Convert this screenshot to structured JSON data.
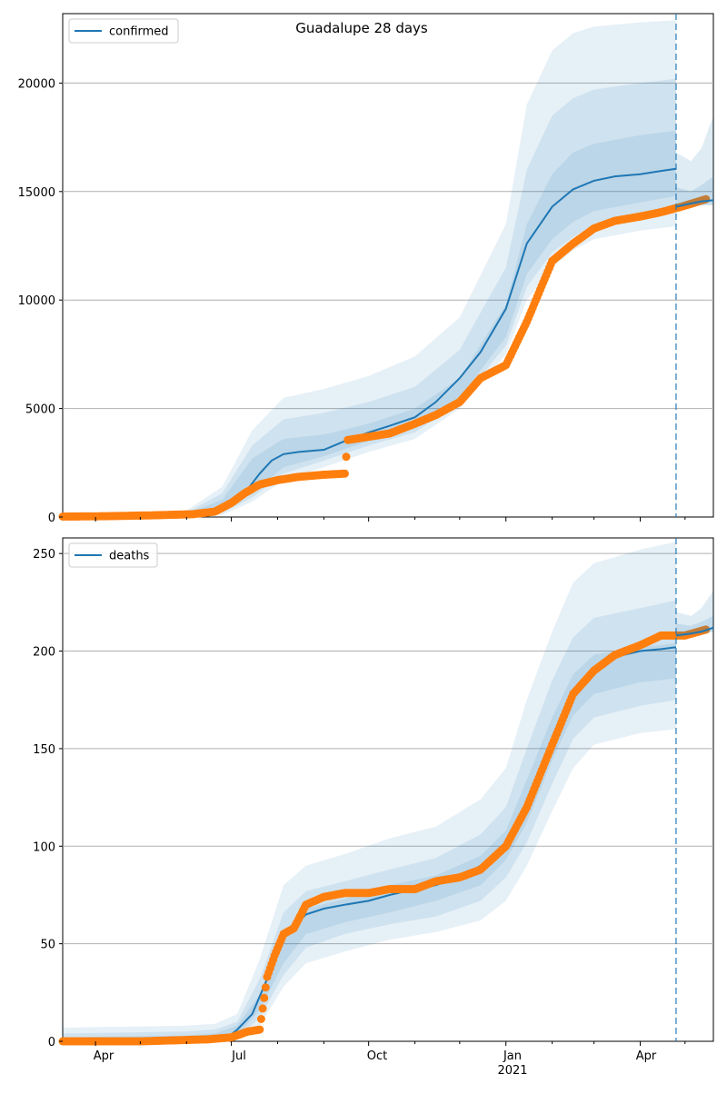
{
  "figure": {
    "title": "Guadalupe 28 days"
  },
  "colors": {
    "model": "#1f77b4",
    "observed": "#ff7f0e",
    "band": "#1f77b4",
    "grid": "#b0b0b0",
    "forecast_line": "#1f77b4"
  },
  "x_axis": {
    "tick_labels": [
      "Apr",
      "Jul",
      "Oct",
      "Jan",
      "Apr"
    ],
    "year_label": "2021"
  },
  "chart_data": [
    {
      "type": "line",
      "legend": "confirmed",
      "ylim": [
        0,
        23200
      ],
      "yticks": [
        0,
        5000,
        10000,
        15000,
        20000
      ],
      "xrange": [
        "2020-03-10",
        "2021-05-20"
      ],
      "forecast_start": "2021-04-25",
      "grid": "horizontal",
      "legend_position": "top-left",
      "series_model": {
        "x": [
          "2020-03-10",
          "2020-06-05",
          "2020-06-20",
          "2020-07-01",
          "2020-07-10",
          "2020-07-20",
          "2020-07-28",
          "2020-08-05",
          "2020-08-15",
          "2020-09-01",
          "2020-09-15",
          "2020-10-01",
          "2020-10-15",
          "2020-11-01",
          "2020-11-15",
          "2020-12-01",
          "2020-12-15",
          "2021-01-01",
          "2021-01-15",
          "2021-02-01",
          "2021-02-15",
          "2021-03-01",
          "2021-03-15",
          "2021-04-01",
          "2021-04-15",
          "2021-04-25"
        ],
        "values": [
          0,
          30,
          160,
          500,
          1100,
          2000,
          2600,
          2900,
          3000,
          3100,
          3500,
          3900,
          4200,
          4600,
          5300,
          6400,
          7600,
          9600,
          12600,
          14300,
          15100,
          15500,
          15700,
          15800,
          15950,
          16050
        ]
      },
      "series_observed": {
        "x": [
          "2020-03-10",
          "2020-04-10",
          "2020-05-10",
          "2020-06-05",
          "2020-06-20",
          "2020-07-01",
          "2020-07-10",
          "2020-07-20",
          "2020-08-01",
          "2020-08-15",
          "2020-09-01",
          "2020-09-15",
          "2020-09-17",
          "2020-10-01",
          "2020-10-15",
          "2020-11-01",
          "2020-11-15",
          "2020-12-01",
          "2020-12-15",
          "2021-01-01",
          "2021-01-15",
          "2021-02-01",
          "2021-02-15",
          "2021-03-01",
          "2021-03-15",
          "2021-04-01",
          "2021-04-15",
          "2021-05-01",
          "2021-05-15"
        ],
        "values": [
          20,
          40,
          80,
          130,
          250,
          650,
          1100,
          1500,
          1700,
          1850,
          1950,
          2000,
          3550,
          3700,
          3850,
          4300,
          4700,
          5300,
          6400,
          7000,
          9000,
          11800,
          12600,
          13300,
          13650,
          13850,
          14050,
          14350,
          14650
        ]
      },
      "bands": [
        {
          "x": [
            "2020-03-10",
            "2020-06-01",
            "2020-06-25",
            "2020-07-15",
            "2020-08-05",
            "2020-09-01",
            "2020-10-01",
            "2020-11-01",
            "2020-12-01",
            "2021-01-01",
            "2021-01-15",
            "2021-02-01",
            "2021-02-15",
            "2021-03-01",
            "2021-04-01",
            "2021-04-25"
          ],
          "low": [
            0,
            0,
            100,
            700,
            1700,
            2300,
            3000,
            3600,
            5000,
            7500,
            10000,
            11500,
            12300,
            12800,
            13200,
            13400
          ],
          "high": [
            100,
            300,
            1400,
            4000,
            5500,
            5900,
            6500,
            7400,
            9200,
            13500,
            19000,
            21500,
            22300,
            22600,
            22800,
            22900
          ]
        },
        {
          "x": [
            "2020-03-10",
            "2020-06-01",
            "2020-06-25",
            "2020-07-15",
            "2020-08-05",
            "2020-09-01",
            "2020-10-01",
            "2020-11-01",
            "2020-12-01",
            "2021-01-01",
            "2021-01-15",
            "2021-02-01",
            "2021-02-15",
            "2021-03-01",
            "2021-04-01",
            "2021-04-25"
          ],
          "low": [
            0,
            0,
            200,
            900,
            2000,
            2600,
            3300,
            3900,
            5300,
            7900,
            10600,
            12200,
            12900,
            13500,
            14000,
            14200
          ],
          "high": [
            60,
            200,
            1100,
            3300,
            4500,
            4800,
            5300,
            6000,
            7700,
            11500,
            16000,
            18500,
            19300,
            19700,
            20000,
            20200
          ]
        },
        {
          "x": [
            "2020-03-10",
            "2020-06-01",
            "2020-06-25",
            "2020-07-15",
            "2020-08-05",
            "2020-09-01",
            "2020-10-01",
            "2020-11-01",
            "2020-12-01",
            "2021-01-01",
            "2021-01-15",
            "2021-02-01",
            "2021-02-15",
            "2021-03-01",
            "2021-04-01",
            "2021-04-25"
          ],
          "low": [
            0,
            10,
            300,
            1100,
            2300,
            2800,
            3500,
            4100,
            5500,
            8300,
            11200,
            12800,
            13600,
            14100,
            14500,
            14800
          ],
          "high": [
            40,
            150,
            800,
            2700,
            3600,
            3800,
            4300,
            5000,
            6400,
            9800,
            13500,
            15800,
            16800,
            17200,
            17600,
            17800
          ]
        }
      ],
      "forecast_bands": [
        {
          "x": [
            "2021-04-25",
            "2021-05-05",
            "2021-05-12",
            "2021-05-20"
          ],
          "low": [
            14300,
            14300,
            14350,
            14350
          ],
          "high": [
            16800,
            16400,
            17000,
            18500
          ]
        },
        {
          "x": [
            "2021-04-25",
            "2021-05-05",
            "2021-05-12",
            "2021-05-20"
          ],
          "low": [
            14400,
            14400,
            14400,
            14400
          ],
          "high": [
            15200,
            15000,
            15300,
            15700
          ]
        }
      ],
      "forecast_line": {
        "x": [
          "2021-04-25",
          "2021-05-05",
          "2021-05-12",
          "2021-05-20"
        ],
        "values": [
          14300,
          14450,
          14550,
          14600
        ]
      }
    },
    {
      "type": "line",
      "legend": "deaths",
      "ylim": [
        0,
        258
      ],
      "yticks": [
        0,
        50,
        100,
        150,
        200,
        250
      ],
      "xrange": [
        "2020-03-10",
        "2021-05-20"
      ],
      "forecast_start": "2021-04-25",
      "grid": "horizontal",
      "legend_position": "top-left",
      "series_model": {
        "x": [
          "2020-03-10",
          "2020-06-01",
          "2020-06-30",
          "2020-07-05",
          "2020-07-15",
          "2020-07-25",
          "2020-08-01",
          "2020-08-10",
          "2020-08-20",
          "2020-09-01",
          "2020-09-15",
          "2020-10-01",
          "2020-10-15",
          "2020-11-01",
          "2020-11-15",
          "2020-12-01",
          "2020-12-15",
          "2021-01-01",
          "2021-01-15",
          "2021-02-01",
          "2021-02-15",
          "2021-03-01",
          "2021-03-15",
          "2021-04-01",
          "2021-04-15",
          "2021-04-25"
        ],
        "values": [
          0,
          2,
          3,
          6,
          14,
          32,
          48,
          58,
          65,
          68,
          70,
          72,
          75,
          78,
          80,
          84,
          90,
          102,
          122,
          152,
          178,
          190,
          197,
          200,
          201,
          202
        ]
      },
      "series_observed": {
        "x": [
          "2020-03-10",
          "2020-05-01",
          "2020-06-15",
          "2020-07-01",
          "2020-07-12",
          "2020-07-20",
          "2020-07-25",
          "2020-07-30",
          "2020-08-05",
          "2020-08-12",
          "2020-08-20",
          "2020-09-01",
          "2020-09-15",
          "2020-10-01",
          "2020-10-15",
          "2020-11-01",
          "2020-11-15",
          "2020-12-01",
          "2020-12-15",
          "2021-01-01",
          "2021-01-15",
          "2021-02-01",
          "2021-02-15",
          "2021-03-01",
          "2021-03-15",
          "2021-04-01",
          "2021-04-15",
          "2021-05-01",
          "2021-05-15"
        ],
        "values": [
          0,
          0,
          1,
          2,
          5,
          6,
          33,
          44,
          55,
          58,
          70,
          74,
          76,
          76,
          78,
          78,
          82,
          84,
          88,
          100,
          120,
          152,
          178,
          190,
          198,
          203,
          208,
          208,
          211
        ]
      },
      "bands": [
        {
          "x": [
            "2020-03-10",
            "2020-06-01",
            "2020-06-20",
            "2020-07-05",
            "2020-07-20",
            "2020-08-05",
            "2020-08-20",
            "2020-09-15",
            "2020-10-15",
            "2020-11-15",
            "2020-12-15",
            "2021-01-01",
            "2021-01-15",
            "2021-02-01",
            "2021-02-15",
            "2021-03-01",
            "2021-04-01",
            "2021-04-25"
          ],
          "low": [
            0,
            0,
            0,
            1,
            8,
            28,
            40,
            46,
            52,
            56,
            62,
            72,
            90,
            118,
            140,
            152,
            158,
            160
          ],
          "high": [
            7,
            8,
            9,
            14,
            42,
            80,
            90,
            96,
            104,
            110,
            124,
            140,
            175,
            210,
            235,
            245,
            252,
            256
          ]
        },
        {
          "x": [
            "2020-03-10",
            "2020-06-01",
            "2020-06-20",
            "2020-07-05",
            "2020-07-20",
            "2020-08-05",
            "2020-08-20",
            "2020-09-15",
            "2020-10-15",
            "2020-11-15",
            "2020-12-15",
            "2021-01-01",
            "2021-01-15",
            "2021-02-01",
            "2021-02-15",
            "2021-03-01",
            "2021-04-01",
            "2021-04-25"
          ],
          "low": [
            0,
            0,
            1,
            2,
            12,
            34,
            48,
            55,
            60,
            64,
            72,
            84,
            102,
            132,
            155,
            166,
            172,
            175
          ],
          "high": [
            4,
            5,
            6,
            10,
            32,
            66,
            77,
            82,
            88,
            94,
            106,
            120,
            150,
            185,
            207,
            217,
            222,
            226
          ]
        },
        {
          "x": [
            "2020-03-10",
            "2020-06-01",
            "2020-06-20",
            "2020-07-05",
            "2020-07-20",
            "2020-08-05",
            "2020-08-20",
            "2020-09-15",
            "2020-10-15",
            "2020-11-15",
            "2020-12-15",
            "2021-01-01",
            "2021-01-15",
            "2021-02-01",
            "2021-02-15",
            "2021-03-01",
            "2021-04-01",
            "2021-04-25"
          ],
          "low": [
            0,
            1,
            1,
            3,
            16,
            40,
            55,
            61,
            66,
            72,
            80,
            93,
            112,
            144,
            167,
            178,
            184,
            186
          ],
          "high": [
            2,
            3,
            4,
            8,
            24,
            56,
            68,
            73,
            80,
            85,
            95,
            108,
            134,
            166,
            188,
            198,
            202,
            204
          ]
        }
      ],
      "forecast_bands": [
        {
          "x": [
            "2021-04-25",
            "2021-05-05",
            "2021-05-12",
            "2021-05-20"
          ],
          "low": [
            207,
            208,
            209,
            210
          ],
          "high": [
            220,
            218,
            222,
            231
          ]
        },
        {
          "x": [
            "2021-04-25",
            "2021-05-05",
            "2021-05-12",
            "2021-05-20"
          ],
          "low": [
            208,
            209,
            209,
            210
          ],
          "high": [
            214,
            213,
            215,
            218
          ]
        }
      ],
      "forecast_line": {
        "x": [
          "2021-04-25",
          "2021-05-05",
          "2021-05-12",
          "2021-05-20"
        ],
        "values": [
          208,
          209,
          210,
          212
        ]
      }
    }
  ]
}
